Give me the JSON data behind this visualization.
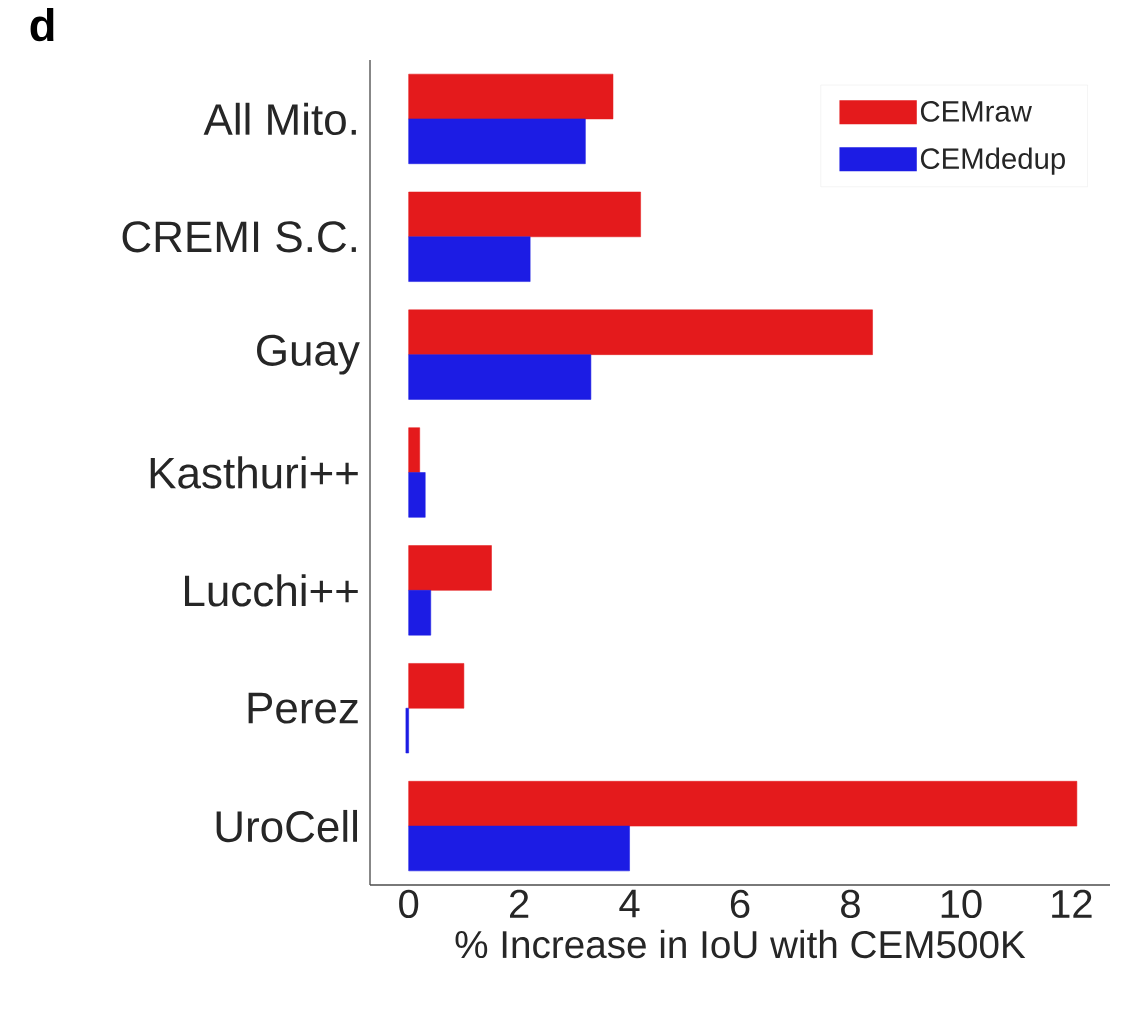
{
  "chart_data": {
    "type": "bar",
    "orientation": "horizontal",
    "xlabel": "% Increase in IoU with CEM500K",
    "categories": [
      "All Mito.",
      "CREMI S.C.",
      "Guay",
      "Kasthuri++",
      "Lucchi++",
      "Perez",
      "UroCell"
    ],
    "series": [
      {
        "name": "CEMraw",
        "color": "#e41a1c",
        "values": [
          3.7,
          4.2,
          8.4,
          0.2,
          1.5,
          1.0,
          12.1
        ]
      },
      {
        "name": "CEMdedup",
        "color": "#1c1ce4",
        "values": [
          3.2,
          2.2,
          3.3,
          0.3,
          0.4,
          -0.05,
          4.0
        ]
      }
    ],
    "xlim": [
      -0.7,
      12.7
    ],
    "xticks": [
      0,
      2,
      4,
      6,
      8,
      10,
      12
    ],
    "legend": "top right",
    "annotations": [
      "d"
    ]
  }
}
